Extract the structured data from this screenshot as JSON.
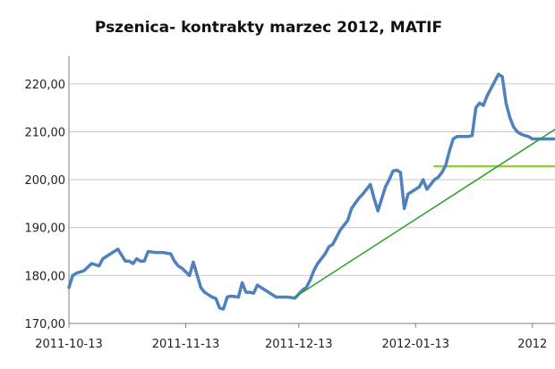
{
  "chart_data": {
    "type": "line",
    "title": "Pszenica- kontrakty marzec 2012, MATIF",
    "xlabel": "",
    "ylabel": "",
    "ylim": [
      170,
      225
    ],
    "yticks": [
      170,
      180,
      190,
      200,
      210,
      220
    ],
    "ytick_labels": [
      "170,00",
      "180,00",
      "190,00",
      "200,00",
      "210,00",
      "220,00"
    ],
    "xticks": [
      0,
      31,
      61,
      92,
      123
    ],
    "xtick_labels": [
      "2011-10-13",
      "2011-11-13",
      "2011-12-13",
      "2012-01-13",
      "2012"
    ],
    "xlim": [
      0,
      129
    ],
    "grid": true,
    "legend": "none",
    "colors": {
      "price": "#4f81bd",
      "trend": "#2ca02c",
      "resistance": "#9acd32",
      "grid": "#c8c8c8",
      "axis": "#808080"
    },
    "series": [
      {
        "kind": "price",
        "x": [
          0,
          1,
          2,
          4,
          6,
          8,
          9,
          10,
          11,
          13,
          15,
          16,
          17,
          18,
          19,
          20,
          21,
          23,
          25,
          27,
          28,
          29,
          30,
          32,
          33,
          35,
          36,
          37,
          38,
          39,
          40,
          41,
          42,
          43,
          45,
          46,
          47,
          48,
          49,
          50,
          51,
          52,
          53,
          54,
          55,
          57,
          58,
          60,
          62,
          63,
          64,
          65,
          66,
          67,
          68,
          69,
          70,
          71,
          72,
          74,
          75,
          77,
          78,
          79,
          80,
          81,
          82,
          83,
          84,
          85,
          86,
          87,
          88,
          89,
          90,
          91,
          92,
          93,
          94,
          95,
          96,
          97,
          98,
          99,
          100,
          101,
          102,
          103,
          104,
          105,
          106,
          107,
          108,
          109,
          110,
          111,
          112,
          113,
          114,
          115,
          116,
          117,
          118,
          119,
          120,
          121,
          122,
          123,
          124,
          125,
          126,
          127,
          128,
          129
        ],
        "y": [
          177.5,
          180,
          180.5,
          181,
          182.5,
          182,
          183.5,
          184,
          184.5,
          185.5,
          183,
          183,
          182.5,
          183.5,
          183,
          183,
          185,
          184.8,
          184.8,
          184.5,
          183,
          182,
          181.5,
          180,
          182.8,
          177.5,
          176.5,
          176,
          175.5,
          175.2,
          173.2,
          173,
          175.5,
          175.7,
          175.5,
          178.5,
          176.5,
          176.5,
          176.3,
          178,
          177.5,
          177,
          176.5,
          176,
          175.5,
          175.5,
          175.5,
          175.3,
          177,
          177.5,
          179,
          181,
          182.5,
          183.5,
          184.5,
          186,
          186.5,
          188,
          189.5,
          191.5,
          194,
          196.2,
          197,
          198,
          199,
          196,
          193.5,
          196,
          198.5,
          200,
          201.8,
          202,
          201.5,
          194,
          197,
          197.5,
          198,
          198.5,
          200,
          198,
          199,
          200,
          200.5,
          201.5,
          203,
          206,
          208.5,
          209,
          209,
          209,
          209,
          209.2,
          215,
          216,
          215.5,
          217.5,
          219,
          220.5,
          222,
          221.5,
          216,
          213,
          211,
          210,
          209.5,
          209.2,
          209,
          208.5,
          208.5,
          208.5,
          208.5,
          208.5,
          208.5,
          208.5
        ]
      },
      {
        "kind": "trend",
        "x": [
          60,
          129
        ],
        "y": [
          175.5,
          210.5
        ]
      },
      {
        "kind": "resistance",
        "x": [
          97,
          129
        ],
        "y": [
          202.8,
          202.8
        ]
      }
    ]
  }
}
